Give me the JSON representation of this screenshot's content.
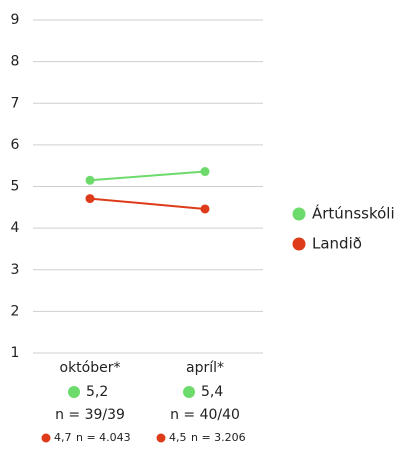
{
  "chart_data": {
    "type": "line",
    "categories": [
      "október*",
      "apríl*"
    ],
    "ylim": [
      1,
      9
    ],
    "yticks": [
      1,
      2,
      3,
      4,
      5,
      6,
      7,
      8,
      9
    ],
    "grid": true,
    "series": [
      {
        "name": "Ártúnsskóli",
        "color": "#6cdb6c",
        "values": [
          5.15,
          5.36
        ],
        "value_labels": [
          "5,2",
          "5,4"
        ],
        "n_labels": [
          "n = 39/39",
          "n = 40/40"
        ]
      },
      {
        "name": "Landið",
        "color": "#dd3b1a",
        "values": [
          4.71,
          4.46
        ],
        "value_labels": [
          "4,7",
          "4,5"
        ],
        "n_labels": [
          "n = 4.043",
          "n = 3.206"
        ]
      }
    ]
  }
}
